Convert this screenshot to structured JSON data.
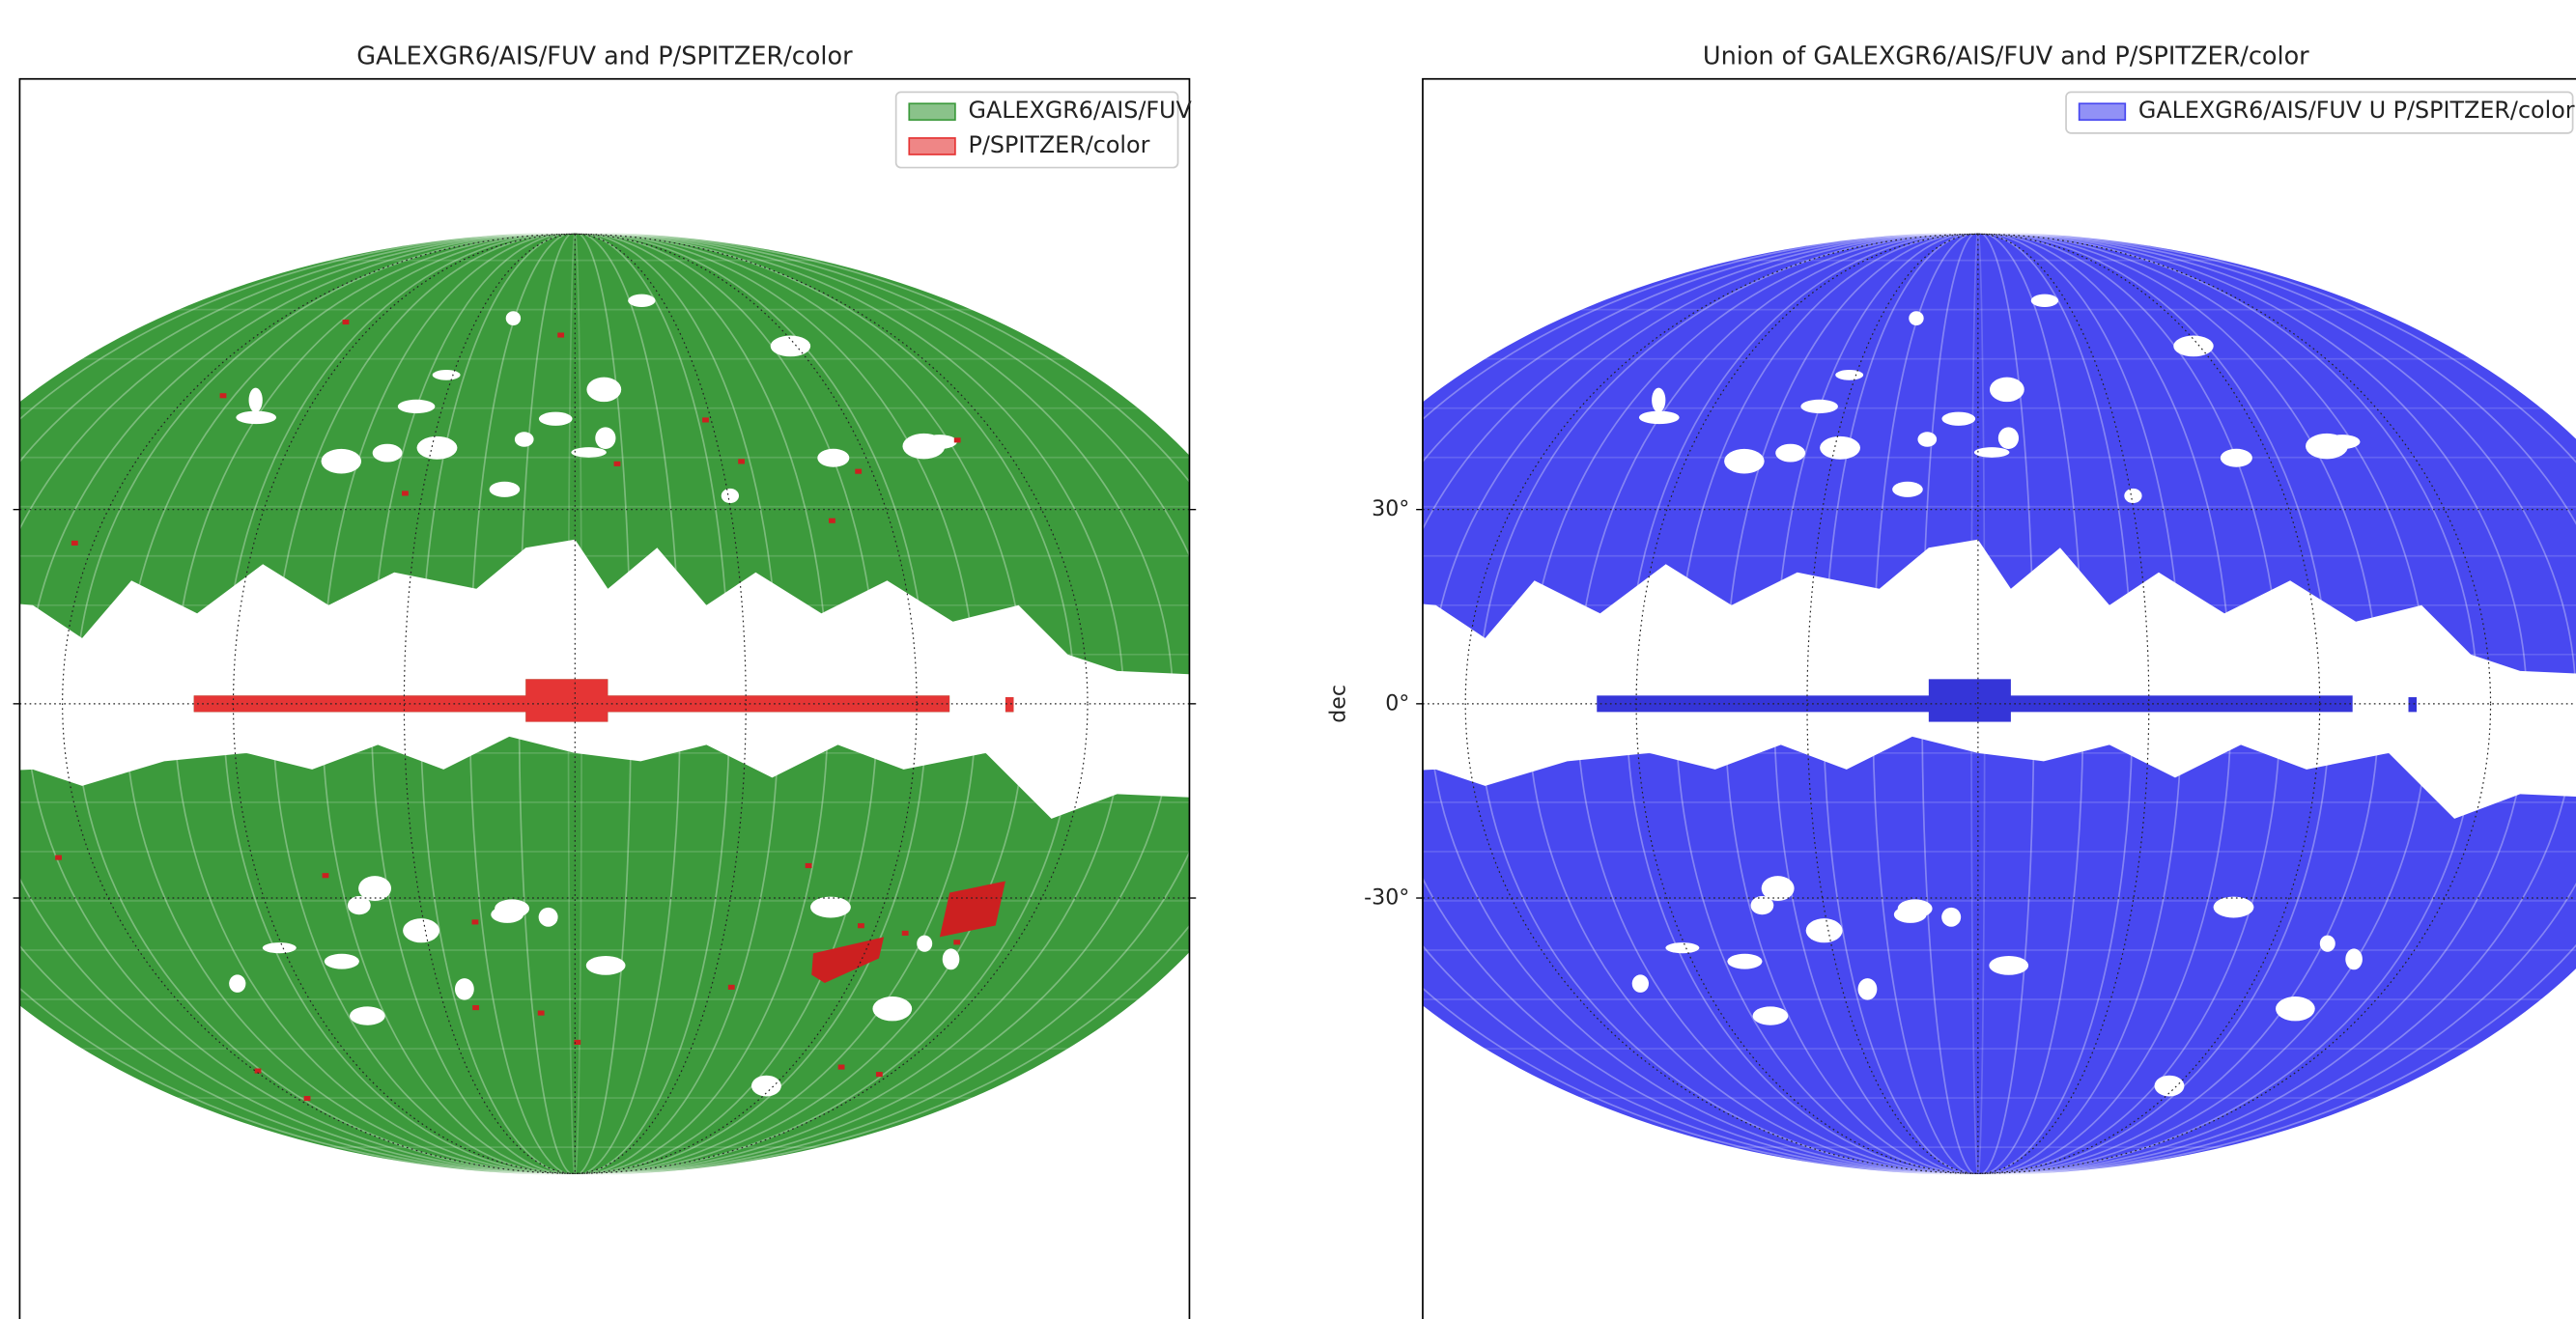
{
  "chart_data": [
    {
      "type": "map",
      "title": "GALEXGR6/AIS/FUV and P/SPITZER/color",
      "series": [
        {
          "name": "GALEXGR6/AIS/FUV",
          "color": "green"
        },
        {
          "name": "P/SPITZER/color",
          "color": "red"
        }
      ],
      "ylim": [
        -95,
        96.5
      ],
      "yticks": [
        30,
        0,
        -30
      ],
      "grid": true,
      "legend": "upper right"
    },
    {
      "type": "map",
      "title": "Union of GALEXGR6/AIS/FUV and P/SPITZER/color",
      "ylabel": "dec",
      "series": [
        {
          "name": "GALEXGR6/AIS/FUV U P/SPITZER/color",
          "color": "blue"
        }
      ],
      "ylim": [
        -95,
        96.5
      ],
      "yticks": [
        {
          "value": 30,
          "label": "30°"
        },
        {
          "value": 0,
          "label": "0°"
        },
        {
          "value": -30,
          "label": "-30°"
        }
      ],
      "grid": true,
      "legend": "upper right"
    }
  ]
}
